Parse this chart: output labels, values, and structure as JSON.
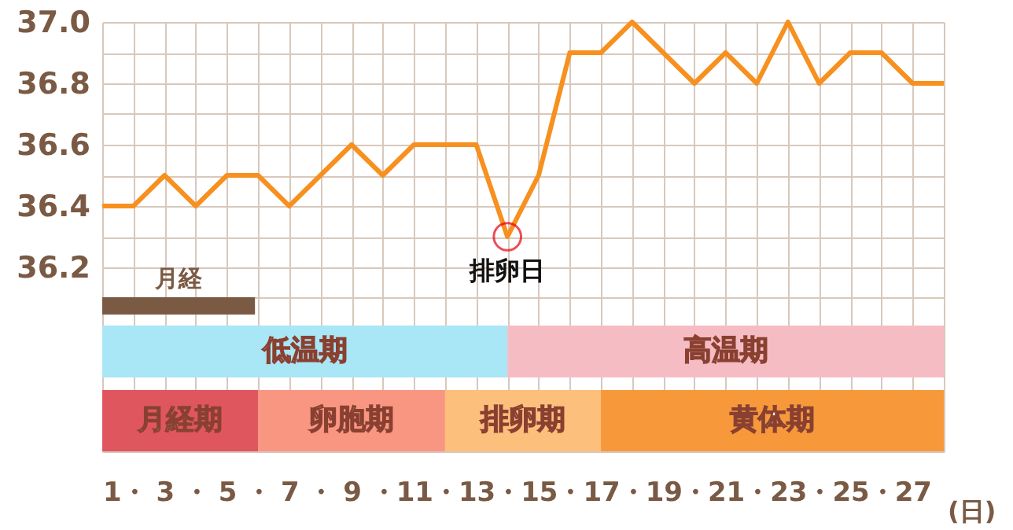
{
  "chart_data": {
    "type": "line",
    "x": [
      1,
      2,
      3,
      4,
      5,
      6,
      7,
      8,
      9,
      10,
      11,
      12,
      13,
      14,
      15,
      16,
      17,
      18,
      19,
      20,
      21,
      22,
      23,
      24,
      25,
      26,
      27,
      28
    ],
    "series": [
      {
        "color": "#f7901e",
        "values": [
          36.4,
          36.4,
          36.5,
          36.4,
          36.5,
          36.5,
          36.4,
          36.5,
          36.6,
          36.5,
          36.6,
          36.6,
          36.6,
          36.3,
          36.5,
          36.9,
          36.9,
          37.0,
          36.9,
          36.8,
          36.9,
          36.8,
          37.0,
          36.8,
          36.9,
          36.9,
          36.8,
          36.8
        ]
      }
    ],
    "xlabel": "(日)",
    "xlim": [
      1,
      28
    ],
    "xticks": [
      1,
      {
        "value": 2,
        "label": "・"
      },
      3,
      {
        "value": 4,
        "label": "・"
      },
      5,
      {
        "value": 6,
        "label": "・"
      },
      7,
      {
        "value": 8,
        "label": "・"
      },
      9,
      {
        "value": 10,
        "label": "・"
      },
      11,
      {
        "value": 12,
        "label": "・"
      },
      13,
      {
        "value": 14,
        "label": "・"
      },
      15,
      {
        "value": 16,
        "label": "・"
      },
      17,
      {
        "value": 18,
        "label": "・"
      },
      19,
      {
        "value": 20,
        "label": "・"
      },
      21,
      {
        "value": 22,
        "label": "・"
      },
      23,
      {
        "value": 24,
        "label": "・"
      },
      25,
      {
        "value": 26,
        "label": "・"
      },
      27,
      {
        "value": 28,
        "label": null
      }
    ],
    "ylim": [
      35.6,
      37.0
    ],
    "yticks": [
      {
        "value": 35.6,
        "label": null
      },
      {
        "value": 35.9,
        "label": null
      },
      {
        "value": 36.0,
        "label": null
      },
      {
        "value": 36.1,
        "label": null
      },
      36.2,
      {
        "value": 36.3,
        "label": null
      },
      36.4,
      {
        "value": 36.5,
        "label": null
      },
      36.6,
      {
        "value": 36.7,
        "label": null
      },
      36.8,
      {
        "value": 36.9,
        "label": null
      },
      {
        "value": 37.0,
        "label": "37.0"
      }
    ],
    "grid": true,
    "marker": "none",
    "line_style": "solid",
    "annotations": [
      {
        "text": "排卵日",
        "x": 14,
        "y": 36.3
      }
    ],
    "bands": [
      {
        "axis": "x",
        "from": 1,
        "to": 14,
        "label": "低温期",
        "color": "#a9e6f6"
      },
      {
        "axis": "x",
        "from": 14,
        "to": 28,
        "label": "高温期",
        "color": "#f6bcc4"
      },
      {
        "axis": "x",
        "from": 1,
        "to": 6,
        "label": "月経期",
        "color": "#e0565f"
      },
      {
        "axis": "x",
        "from": 6,
        "to": 12,
        "label": "卵胞期",
        "color": "#f99682"
      },
      {
        "axis": "x",
        "from": 12,
        "to": 17,
        "label": "排卵期",
        "color": "#fdbf7c"
      },
      {
        "axis": "x",
        "from": 17,
        "to": 28,
        "label": "黄体期",
        "color": "#f7993b"
      },
      {
        "axis": "x",
        "from": 1,
        "to": 5.9,
        "label": "月経",
        "color": "#7b5a43"
      }
    ]
  }
}
